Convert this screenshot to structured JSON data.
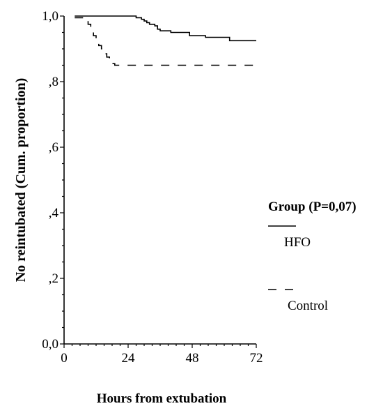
{
  "chart_data": {
    "type": "line",
    "title": "",
    "xlabel": "Hours from extubation",
    "ylabel": "No reintubated (Cum. proportion)",
    "xlim": [
      0,
      72
    ],
    "ylim": [
      0,
      1
    ],
    "x_ticks": [
      0,
      24,
      48,
      72
    ],
    "x_tick_labels": [
      "0",
      "24",
      "48",
      "72"
    ],
    "y_ticks": [
      0,
      0.2,
      0.4,
      0.6,
      0.8,
      1.0
    ],
    "y_tick_labels": [
      "0,0",
      ",2",
      ",4",
      ",6",
      ",8",
      "1,0"
    ],
    "grid": false,
    "legend": {
      "title": "Group (P=0,07)",
      "placement": "right",
      "entries": [
        {
          "label": "HFO",
          "style": "solid"
        },
        {
          "label": "Control",
          "style": "dashed"
        }
      ]
    },
    "series": [
      {
        "name": "HFO",
        "style": "solid",
        "color": "#000000",
        "x": [
          4,
          25,
          27,
          29,
          30,
          31,
          32,
          34,
          35,
          36,
          40,
          47,
          53,
          62,
          72
        ],
        "y": [
          1.0,
          1.0,
          0.995,
          0.99,
          0.985,
          0.98,
          0.975,
          0.97,
          0.96,
          0.955,
          0.95,
          0.94,
          0.935,
          0.925,
          0.925
        ]
      },
      {
        "name": "Control",
        "style": "dashed",
        "color": "#000000",
        "x": [
          4,
          8,
          9,
          10,
          11,
          12,
          13,
          14,
          15,
          16,
          17,
          18,
          19,
          72
        ],
        "y": [
          0.995,
          0.99,
          0.975,
          0.96,
          0.94,
          0.925,
          0.91,
          0.9,
          0.885,
          0.875,
          0.865,
          0.855,
          0.85,
          0.85
        ]
      }
    ]
  }
}
